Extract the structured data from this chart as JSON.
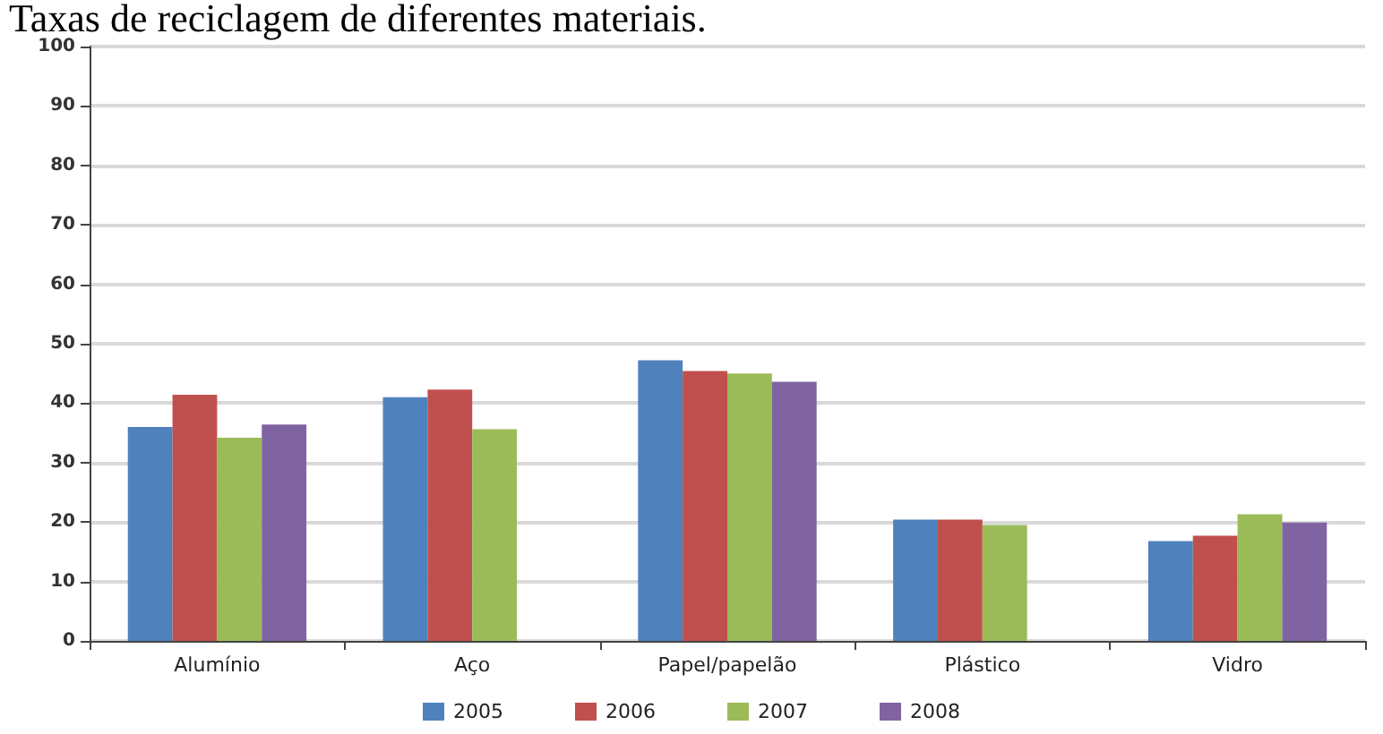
{
  "chart_data": {
    "type": "bar",
    "title": "Taxas de reciclagem de diferentes materiais.",
    "categories": [
      "Alumínio",
      "Aço",
      "Papel/papelão",
      "Plástico",
      "Vidro"
    ],
    "series": [
      {
        "name": "2005",
        "color": "#4f81bd",
        "values": [
          36,
          41,
          47.2,
          20.4,
          16.8
        ]
      },
      {
        "name": "2006",
        "color": "#c0504d",
        "values": [
          41.4,
          42.3,
          45.4,
          20.4,
          17.7
        ]
      },
      {
        "name": "2007",
        "color": "#9bbb59",
        "values": [
          34.2,
          35.6,
          45,
          19.5,
          21.3
        ]
      },
      {
        "name": "2008",
        "color": "#8064a2",
        "values": [
          36.4,
          null,
          43.6,
          null,
          19.9
        ]
      }
    ],
    "ylim": [
      0,
      100
    ],
    "yticks": [
      0,
      10,
      20,
      30,
      40,
      50,
      60,
      70,
      80,
      90,
      100
    ],
    "grid": "y",
    "legend": "bottom"
  }
}
